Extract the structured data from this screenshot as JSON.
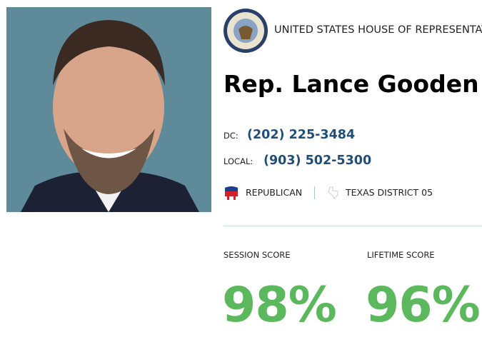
{
  "header": {
    "title": "UNITED STATES HOUSE OF REPRESENTAT"
  },
  "name": "Rep. Lance Gooden",
  "contacts": [
    {
      "label": "DC:",
      "phone": "(202) 225-3484"
    },
    {
      "label": "LOCAL:",
      "phone": "(903) 502-5300"
    }
  ],
  "party": "REPUBLICAN",
  "district": "TEXAS DISTRICT 05",
  "scores": [
    {
      "label": "SESSION SCORE",
      "value": "98%"
    },
    {
      "label": "LIFETIME SCORE",
      "value": "96%"
    }
  ]
}
